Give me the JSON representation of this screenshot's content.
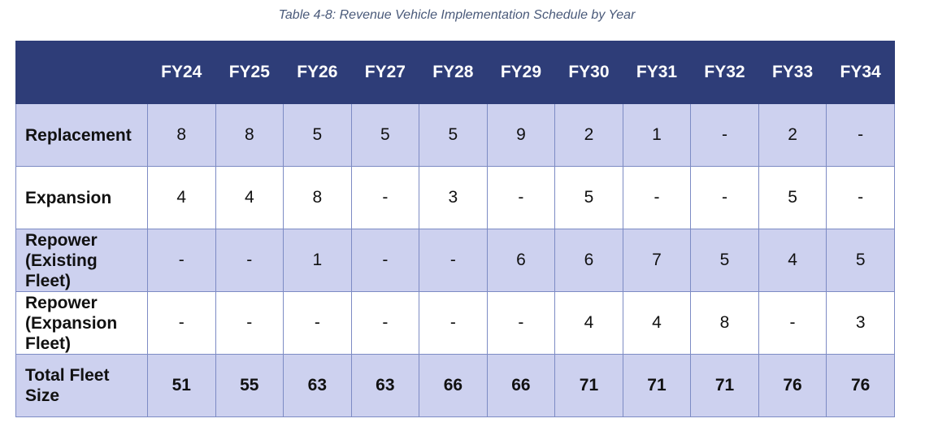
{
  "caption": "Table 4-8: Revenue Vehicle Implementation Schedule by Year",
  "table": {
    "headers": [
      "",
      "FY24",
      "FY25",
      "FY26",
      "FY27",
      "FY28",
      "FY29",
      "FY30",
      "FY31",
      "FY32",
      "FY33",
      "FY34"
    ],
    "rows": [
      {
        "label_lines": [
          "Replacement"
        ],
        "values": [
          "8",
          "8",
          "5",
          "5",
          "5",
          "9",
          "2",
          "1",
          "-",
          "2",
          "-"
        ]
      },
      {
        "label_lines": [
          "Expansion"
        ],
        "values": [
          "4",
          "4",
          "8",
          "-",
          "3",
          "-",
          "5",
          "-",
          "-",
          "5",
          "-"
        ]
      },
      {
        "label_lines": [
          "Repower",
          "(Existing",
          "Fleet)"
        ],
        "values": [
          "-",
          "-",
          "1",
          "-",
          "-",
          "6",
          "6",
          "7",
          "5",
          "4",
          "5"
        ]
      },
      {
        "label_lines": [
          "Repower",
          "(Expansion",
          "Fleet)"
        ],
        "values": [
          "-",
          "-",
          "-",
          "-",
          "-",
          "-",
          "4",
          "4",
          "8",
          "-",
          "3"
        ]
      },
      {
        "label_lines": [
          "Total Fleet",
          "Size"
        ],
        "values": [
          "51",
          "55",
          "63",
          "63",
          "66",
          "66",
          "71",
          "71",
          "71",
          "76",
          "76"
        ]
      }
    ]
  },
  "colors": {
    "header_bg": "#2e3d78",
    "shaded_row_bg": "#cdd1ef",
    "border": "#7d8bc4",
    "caption_text": "#4a5a7a"
  }
}
